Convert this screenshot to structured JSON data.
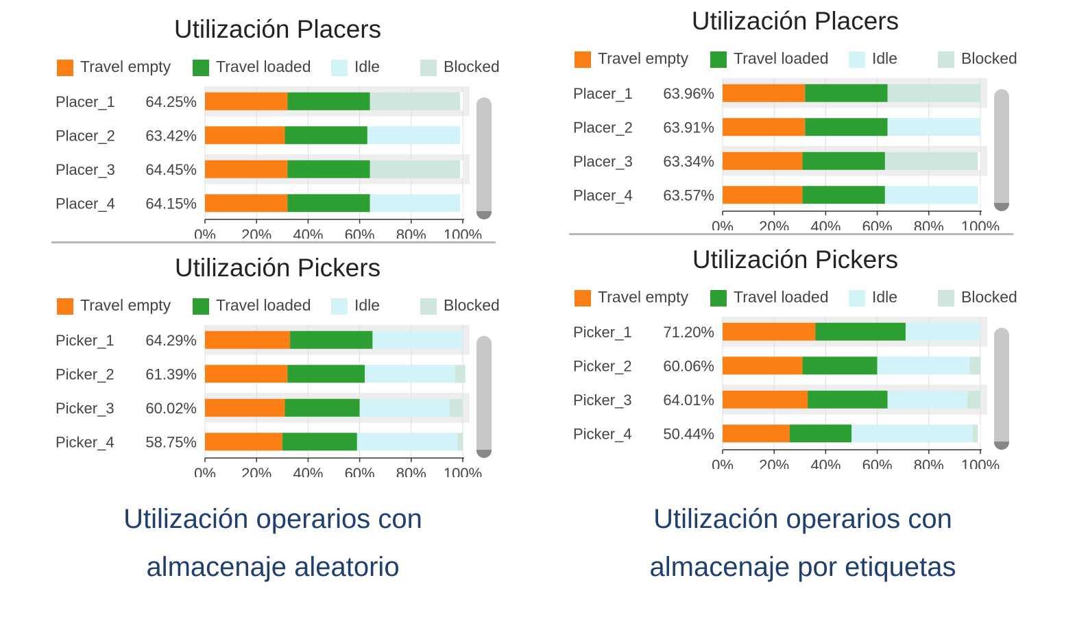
{
  "colors": {
    "travel_empty": "#fb7f14",
    "travel_loaded": "#2d9f32",
    "idle": "#d2f3f7",
    "blocked": "#cfe6dd",
    "remainder": "#ffffff"
  },
  "captions": {
    "left": [
      "Utilización operarios con",
      "almacenaje aleatorio"
    ],
    "right": [
      "Utilización operarios con",
      "almacenaje por etiquetas"
    ]
  },
  "chart_data": [
    {
      "type": "bar",
      "orientation": "horizontal",
      "stacked": true,
      "title": "Utilización Placers",
      "legend": [
        "Travel empty",
        "Travel loaded",
        "Idle",
        "Blocked"
      ],
      "legend_position": "top",
      "categories": [
        "Placer_1",
        "Placer_2",
        "Placer_3",
        "Placer_4"
      ],
      "row_labels": [
        "64.25%",
        "63.42%",
        "64.45%",
        "64.15%"
      ],
      "series": [
        {
          "name": "Travel empty",
          "values": [
            32,
            31,
            32,
            32
          ]
        },
        {
          "name": "Travel loaded",
          "values": [
            32,
            32,
            32,
            32
          ]
        },
        {
          "name": "Idle",
          "values": [
            0,
            36,
            0,
            35
          ]
        },
        {
          "name": "Blocked",
          "values": [
            35,
            0,
            35,
            0
          ]
        }
      ],
      "xlim": [
        0,
        100
      ],
      "xticks": [
        "0%",
        "20%",
        "40%",
        "60%",
        "80%",
        "100%"
      ],
      "grid": true
    },
    {
      "type": "bar",
      "orientation": "horizontal",
      "stacked": true,
      "title": "Utilización Pickers",
      "legend": [
        "Travel empty",
        "Travel loaded",
        "Idle",
        "Blocked"
      ],
      "legend_position": "top",
      "categories": [
        "Picker_1",
        "Picker_2",
        "Picker_3",
        "Picker_4"
      ],
      "row_labels": [
        "64.29%",
        "61.39%",
        "60.02%",
        "58.75%"
      ],
      "series": [
        {
          "name": "Travel empty",
          "values": [
            33,
            32,
            31,
            30
          ]
        },
        {
          "name": "Travel loaded",
          "values": [
            32,
            30,
            29,
            29
          ]
        },
        {
          "name": "Idle",
          "values": [
            35,
            35,
            35,
            39
          ]
        },
        {
          "name": "Blocked",
          "values": [
            0,
            4,
            5,
            2
          ]
        }
      ],
      "xlim": [
        0,
        100
      ],
      "xticks": [
        "0%",
        "20%",
        "40%",
        "60%",
        "80%",
        "100%"
      ],
      "grid": true
    },
    {
      "type": "bar",
      "orientation": "horizontal",
      "stacked": true,
      "title": "Utilización Placers",
      "legend": [
        "Travel empty",
        "Travel loaded",
        "Idle",
        "Blocked"
      ],
      "legend_position": "top",
      "categories": [
        "Placer_1",
        "Placer_2",
        "Placer_3",
        "Placer_4"
      ],
      "row_labels": [
        "63.96%",
        "63.91%",
        "63.34%",
        "63.57%"
      ],
      "series": [
        {
          "name": "Travel empty",
          "values": [
            32,
            32,
            31,
            31
          ]
        },
        {
          "name": "Travel loaded",
          "values": [
            32,
            32,
            32,
            32
          ]
        },
        {
          "name": "Idle",
          "values": [
            0,
            36,
            0,
            36
          ]
        },
        {
          "name": "Blocked",
          "values": [
            36,
            0,
            36,
            0
          ]
        }
      ],
      "xlim": [
        0,
        100
      ],
      "xticks": [
        "0%",
        "20%",
        "40%",
        "60%",
        "80%",
        "100%"
      ],
      "grid": true
    },
    {
      "type": "bar",
      "orientation": "horizontal",
      "stacked": true,
      "title": "Utilización Pickers",
      "legend": [
        "Travel empty",
        "Travel loaded",
        "Idle",
        "Blocked"
      ],
      "legend_position": "top",
      "categories": [
        "Picker_1",
        "Picker_2",
        "Picker_3",
        "Picker_4"
      ],
      "row_labels": [
        "71.20%",
        "60.06%",
        "64.01%",
        "50.44%"
      ],
      "series": [
        {
          "name": "Travel empty",
          "values": [
            36,
            31,
            33,
            26
          ]
        },
        {
          "name": "Travel loaded",
          "values": [
            35,
            29,
            31,
            24
          ]
        },
        {
          "name": "Idle",
          "values": [
            29,
            36,
            31,
            47
          ]
        },
        {
          "name": "Blocked",
          "values": [
            0,
            4,
            5,
            2
          ]
        }
      ],
      "xlim": [
        0,
        100
      ],
      "xticks": [
        "0%",
        "20%",
        "40%",
        "60%",
        "80%",
        "100%"
      ],
      "grid": true
    }
  ]
}
